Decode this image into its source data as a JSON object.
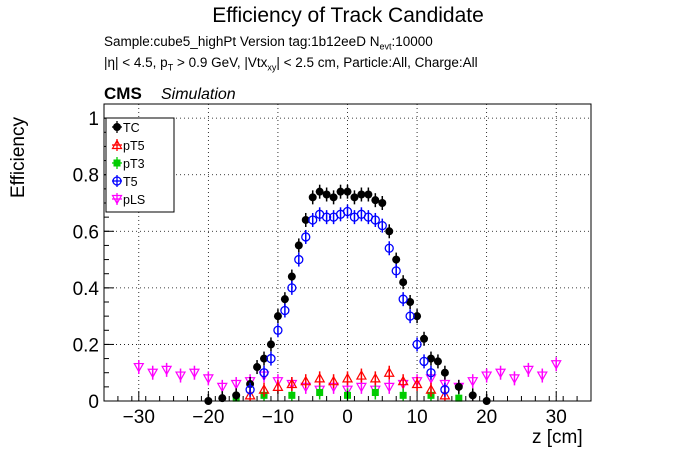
{
  "title": "Efficiency of Track Candidate",
  "subtitle1": "Sample:cube5_highPt   Version tag:1b12eeD  N",
  "subtitle1_sub": "evt",
  "subtitle1_end": ":10000",
  "subtitle2_parts": [
    "|η| < 4.5, p",
    "T",
    " > 0.9 GeV, |Vtx",
    "xy",
    "| < 2.5 cm, Particle:All, Charge:All"
  ],
  "cms_label": "CMS",
  "sim_label": "Simulation",
  "chart_data": {
    "type": "scatter",
    "xlabel": "z [cm]",
    "ylabel": "Efficiency",
    "xlim": [
      -35,
      35
    ],
    "ylim": [
      0,
      1.05
    ],
    "x_ticks": [
      -30,
      -20,
      -10,
      0,
      10,
      20,
      30
    ],
    "y_ticks": [
      0,
      0.2,
      0.4,
      0.6,
      0.8,
      1
    ],
    "y_tick_labels": [
      "0",
      "0.2",
      "0.4",
      "0.6",
      "0.8",
      "1"
    ],
    "grid": true,
    "legend_position": "top-left",
    "series": [
      {
        "name": "TC",
        "color": "#000000",
        "marker": "filled-circle",
        "x": [
          -20,
          -18,
          -16,
          -14,
          -13,
          -12,
          -11,
          -10,
          -9,
          -8,
          -7,
          -6,
          -5,
          -4,
          -3,
          -2,
          -1,
          0,
          1,
          2,
          3,
          4,
          5,
          6,
          7,
          8,
          9,
          10,
          11,
          12,
          13,
          14,
          16,
          18,
          20
        ],
        "y": [
          0.0,
          0.01,
          0.02,
          0.06,
          0.12,
          0.15,
          0.2,
          0.3,
          0.36,
          0.44,
          0.55,
          0.64,
          0.72,
          0.74,
          0.73,
          0.72,
          0.74,
          0.74,
          0.72,
          0.73,
          0.73,
          0.71,
          0.7,
          0.6,
          0.5,
          0.42,
          0.35,
          0.3,
          0.22,
          0.15,
          0.14,
          0.1,
          0.05,
          0.02,
          0.0
        ]
      },
      {
        "name": "pT5",
        "color": "#ff0000",
        "marker": "open-triangle",
        "x": [
          -14,
          -12,
          -10,
          -8,
          -6,
          -4,
          -2,
          0,
          2,
          4,
          6,
          8,
          10,
          12,
          14
        ],
        "y": [
          0.02,
          0.04,
          0.05,
          0.06,
          0.07,
          0.08,
          0.07,
          0.08,
          0.09,
          0.08,
          0.1,
          0.07,
          0.06,
          0.04,
          0.02
        ]
      },
      {
        "name": "pT3",
        "color": "#00cc00",
        "marker": "filled-square",
        "x": [
          -16,
          -12,
          -8,
          -4,
          0,
          4,
          8,
          12,
          16
        ],
        "y": [
          0.01,
          0.02,
          0.02,
          0.03,
          0.02,
          0.03,
          0.02,
          0.02,
          0.01
        ]
      },
      {
        "name": "T5",
        "color": "#0000ff",
        "marker": "open-circle",
        "x": [
          -14,
          -12,
          -11,
          -10,
          -9,
          -8,
          -7,
          -6,
          -5,
          -4,
          -3,
          -2,
          -1,
          0,
          1,
          2,
          3,
          4,
          5,
          6,
          7,
          8,
          9,
          10,
          11,
          12,
          14
        ],
        "y": [
          0.04,
          0.1,
          0.15,
          0.25,
          0.32,
          0.4,
          0.5,
          0.58,
          0.64,
          0.66,
          0.65,
          0.65,
          0.66,
          0.67,
          0.65,
          0.66,
          0.65,
          0.64,
          0.62,
          0.54,
          0.46,
          0.36,
          0.3,
          0.2,
          0.14,
          0.1,
          0.04
        ]
      },
      {
        "name": "pLS",
        "color": "#ff00ff",
        "marker": "open-triangle-down",
        "x": [
          -30,
          -28,
          -26,
          -24,
          -22,
          -20,
          -18,
          -16,
          -14,
          -12,
          -10,
          -8,
          -6,
          -4,
          -2,
          0,
          2,
          4,
          6,
          8,
          10,
          12,
          14,
          16,
          18,
          20,
          22,
          24,
          26,
          28,
          30
        ],
        "y": [
          0.12,
          0.1,
          0.11,
          0.09,
          0.1,
          0.08,
          0.05,
          0.06,
          0.07,
          0.09,
          0.07,
          0.06,
          0.05,
          0.04,
          0.05,
          0.04,
          0.05,
          0.04,
          0.05,
          0.06,
          0.07,
          0.08,
          0.06,
          0.05,
          0.07,
          0.09,
          0.1,
          0.08,
          0.11,
          0.09,
          0.13
        ]
      }
    ]
  }
}
